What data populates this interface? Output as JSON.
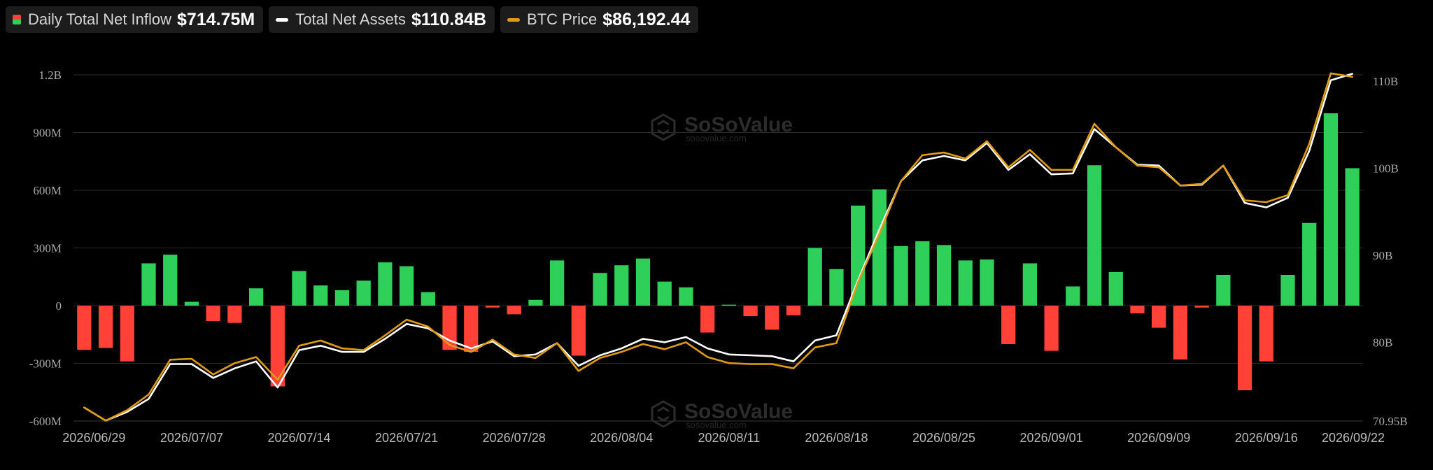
{
  "legend": [
    {
      "label": "Daily Total Net Inflow",
      "value": "$714.75M"
    },
    {
      "label": "Total Net Assets",
      "value": "$110.84B"
    },
    {
      "label": "BTC Price",
      "value": "$86,192.44"
    }
  ],
  "watermark": {
    "brand": "SoSoValue",
    "sub": "sosovalue.com"
  },
  "colors": {
    "positive": "#2fd05a",
    "negative": "#ff4137",
    "assets_line": "#ffffff",
    "btc_line": "#e09a14",
    "grid": "#2a2a2a"
  },
  "chart_data": {
    "type": "bar",
    "title": "",
    "xlabel": "",
    "ylabel": "",
    "grid": true,
    "legend_position": "top-left",
    "x_ticks": [
      "2026/06/29",
      "2026/07/07",
      "2026/07/14",
      "2026/07/21",
      "2026/07/28",
      "2026/08/04",
      "2026/08/11",
      "2026/08/18",
      "2026/08/25",
      "2026/09/01",
      "2026/09/09",
      "2026/09/16",
      "2026/09/22"
    ],
    "y_left": {
      "ticks": [
        -600,
        -300,
        0,
        300,
        600,
        900,
        1200
      ],
      "tick_labels": [
        "-600M",
        "-300M",
        "0",
        "300M",
        "600M",
        "900M",
        "1.2B"
      ],
      "range": [
        -600,
        1200
      ],
      "unit": "M"
    },
    "y_right": {
      "ticks": [
        70.95,
        80,
        90,
        100,
        110
      ],
      "tick_labels": [
        "70.95B",
        "80B",
        "90B",
        "100B",
        "110B"
      ],
      "range": [
        70.95,
        110
      ],
      "unit": "B"
    },
    "series": [
      {
        "name": "Daily Total Net Inflow",
        "type": "bar",
        "axis": "left",
        "values": [
          -230,
          -220,
          -290,
          220,
          265,
          20,
          -80,
          -90,
          90,
          -420,
          180,
          105,
          80,
          130,
          225,
          205,
          70,
          -230,
          -240,
          -10,
          -45,
          30,
          235,
          -260,
          170,
          210,
          245,
          125,
          95,
          -140,
          5,
          -55,
          -125,
          -50,
          300,
          190,
          520,
          605,
          310,
          335,
          315,
          235,
          240,
          -200,
          220,
          -235,
          100,
          730,
          175,
          -40,
          -115,
          -280,
          -10,
          160,
          -440,
          -290,
          160,
          430,
          1000,
          714.75
        ]
      },
      {
        "name": "Total Net Assets",
        "type": "line",
        "axis": "right",
        "values": [
          72.5,
          71.0,
          72.0,
          73.5,
          77.5,
          77.5,
          75.9,
          77.0,
          77.8,
          74.8,
          79.1,
          79.6,
          78.9,
          78.9,
          80.4,
          82.1,
          81.6,
          80.2,
          79.3,
          80.1,
          78.4,
          78.6,
          79.9,
          77.3,
          78.5,
          79.3,
          80.4,
          80.0,
          80.6,
          79.3,
          78.6,
          78.5,
          78.4,
          77.8,
          80.2,
          80.8,
          87.1,
          93.0,
          98.5,
          100.9,
          101.4,
          100.9,
          102.9,
          99.8,
          101.6,
          99.3,
          99.4,
          104.5,
          102.4,
          100.4,
          100.3,
          98.0,
          98.1,
          100.3,
          96.0,
          95.5,
          96.6,
          102.0,
          110.1,
          110.84
        ]
      },
      {
        "name": "BTC Price",
        "type": "line",
        "axis": "right",
        "values": [
          72.5,
          71.0,
          72.2,
          74.0,
          78.0,
          78.1,
          76.3,
          77.6,
          78.3,
          75.7,
          79.6,
          80.2,
          79.3,
          79.1,
          80.8,
          82.6,
          81.8,
          79.7,
          78.9,
          80.3,
          78.6,
          78.2,
          79.9,
          76.7,
          78.2,
          78.9,
          79.8,
          79.2,
          80.0,
          78.3,
          77.6,
          77.5,
          77.5,
          77.0,
          79.4,
          79.9,
          86.9,
          92.5,
          98.5,
          101.5,
          101.8,
          101.1,
          103.1,
          100.1,
          102.1,
          99.8,
          99.8,
          105.1,
          102.4,
          100.3,
          100.1,
          98.0,
          98.2,
          100.3,
          96.3,
          96.1,
          96.9,
          102.8,
          110.9,
          110.5
        ]
      }
    ]
  }
}
